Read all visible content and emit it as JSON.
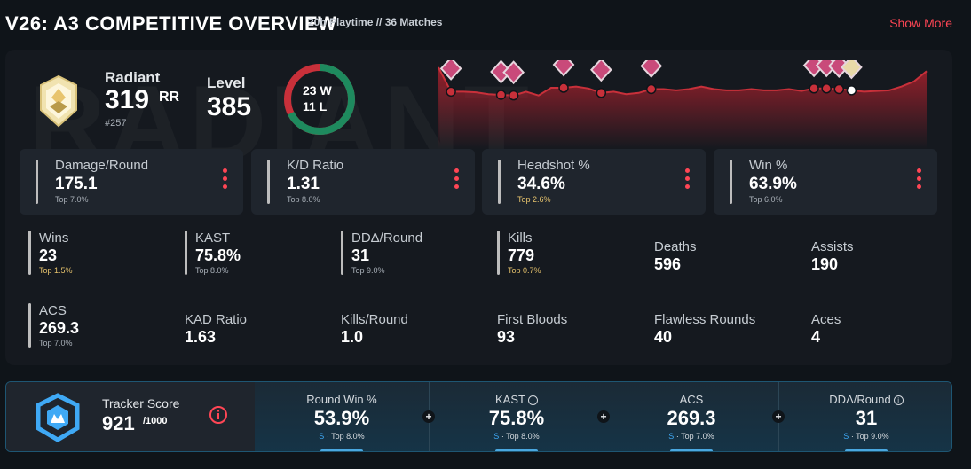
{
  "header": {
    "title": "V26: A3 COMPETITIVE OVERVIEW",
    "playtime": "20h Playtime",
    "matches": "// 36 Matches",
    "show_more": "Show More"
  },
  "rank": {
    "name": "Radiant",
    "rr": "319",
    "rr_unit": "RR",
    "position": "#257",
    "icon": "radiant-rank-icon"
  },
  "level": {
    "label": "Level",
    "value": "385"
  },
  "record": {
    "wins": "23 W",
    "losses": "11 L",
    "win_count": 23,
    "loss_count": 11
  },
  "watermark": "RADIANT",
  "colors": {
    "accent": "#ff4655",
    "win": "#1e8a5e",
    "loss": "#c8303a",
    "gold": "#e8c46d",
    "blue": "#3fa9f5"
  },
  "trend": {
    "values": [
      100,
      62,
      62,
      61,
      58,
      57,
      56,
      62,
      56,
      68,
      68,
      70,
      67,
      60,
      62,
      58,
      60,
      66,
      66,
      64,
      66,
      70,
      66,
      64,
      64,
      66,
      64,
      64,
      66,
      63,
      67,
      67,
      66,
      64,
      62,
      63,
      64,
      70,
      78,
      94
    ],
    "markers": [
      1,
      5,
      6,
      10,
      13,
      17,
      30,
      31,
      32,
      33
    ]
  },
  "cards": [
    {
      "label": "Damage/Round",
      "value": "175.1",
      "percentile": "Top 7.0%",
      "gold": false
    },
    {
      "label": "K/D Ratio",
      "value": "1.31",
      "percentile": "Top 8.0%",
      "gold": false
    },
    {
      "label": "Headshot %",
      "value": "34.6%",
      "percentile": "Top 2.6%",
      "gold": true
    },
    {
      "label": "Win %",
      "value": "63.9%",
      "percentile": "Top 6.0%",
      "gold": false
    }
  ],
  "stats": [
    {
      "label": "Wins",
      "value": "23",
      "percentile": "Top 1.5%",
      "gold": true
    },
    {
      "label": "KAST",
      "value": "75.8%",
      "percentile": "Top 8.0%",
      "gold": false
    },
    {
      "label": "DDΔ/Round",
      "value": "31",
      "percentile": "Top 9.0%",
      "gold": false
    },
    {
      "label": "Kills",
      "value": "779",
      "percentile": "Top 0.7%",
      "gold": true
    },
    {
      "label": "Deaths",
      "value": "596"
    },
    {
      "label": "Assists",
      "value": "190"
    },
    {
      "label": "ACS",
      "value": "269.3",
      "percentile": "Top 7.0%",
      "gold": false
    },
    {
      "label": "KAD Ratio",
      "value": "1.63"
    },
    {
      "label": "Kills/Round",
      "value": "1.0"
    },
    {
      "label": "First Bloods",
      "value": "93"
    },
    {
      "label": "Flawless Rounds",
      "value": "40"
    },
    {
      "label": "Aces",
      "value": "4"
    }
  ],
  "tracker": {
    "label": "Tracker Score",
    "score": "921",
    "max": "/1000",
    "info_icon": "info-icon",
    "metrics": [
      {
        "label": "Round Win %",
        "value": "53.9%",
        "grade": "S",
        "percentile": "· Top 8.0%",
        "info": false
      },
      {
        "label": "KAST",
        "value": "75.8%",
        "grade": "S",
        "percentile": "· Top 8.0%",
        "info": true
      },
      {
        "label": "ACS",
        "value": "269.3",
        "grade": "S",
        "percentile": "· Top 7.0%",
        "info": false
      },
      {
        "label": "DDΔ/Round",
        "value": "31",
        "grade": "S",
        "percentile": "· Top 9.0%",
        "info": true
      }
    ],
    "plus": "+",
    "info_glyph": "i"
  }
}
